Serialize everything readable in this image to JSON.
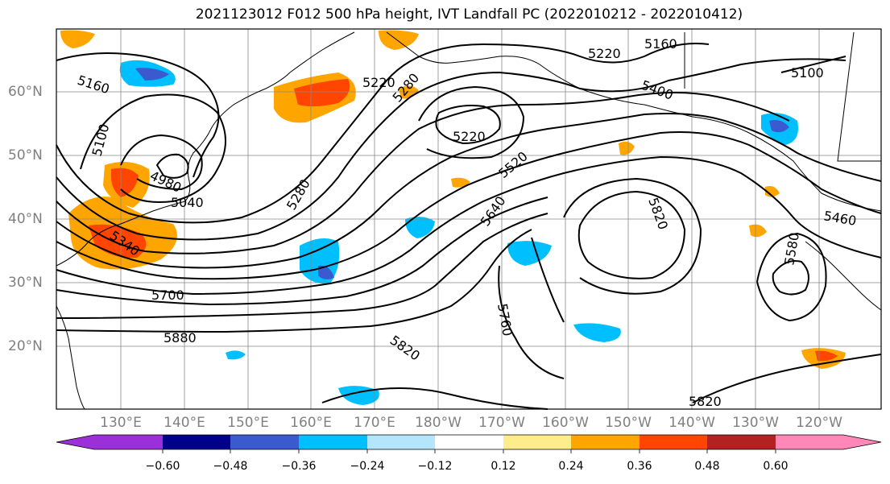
{
  "title": "2021123012 F012 500 hPa height, IVT Landfall PC (2022010212 - 2022010412)",
  "lat_labels": [
    "60°N",
    "50°N",
    "40°N",
    "30°N",
    "20°N"
  ],
  "lon_labels": [
    "130°E",
    "140°E",
    "150°E",
    "160°E",
    "170°E",
    "180°W",
    "170°W",
    "160°W",
    "150°W",
    "140°W",
    "130°W",
    "120°W"
  ],
  "contour_labels": [
    "5160",
    "5100",
    "4980",
    "5040",
    "5220",
    "5280",
    "5160",
    "5220",
    "5280",
    "5400",
    "5100",
    "5220",
    "5520",
    "5640",
    "5820",
    "5460",
    "5580",
    "5700",
    "5760",
    "5880",
    "5820",
    "5820",
    "5340"
  ],
  "colorbar": {
    "ticks": [
      "−0.60",
      "−0.48",
      "−0.36",
      "−0.24",
      "−0.12",
      "0.12",
      "0.24",
      "0.36",
      "0.48",
      "0.60"
    ],
    "colors": [
      "#9b30d9",
      "#00008b",
      "#3a5bd0",
      "#00bfff",
      "#b3e5fc",
      "#ffffff",
      "#ffec8b",
      "#ffa500",
      "#ff4500",
      "#b22222",
      "#ff88b8"
    ]
  }
}
